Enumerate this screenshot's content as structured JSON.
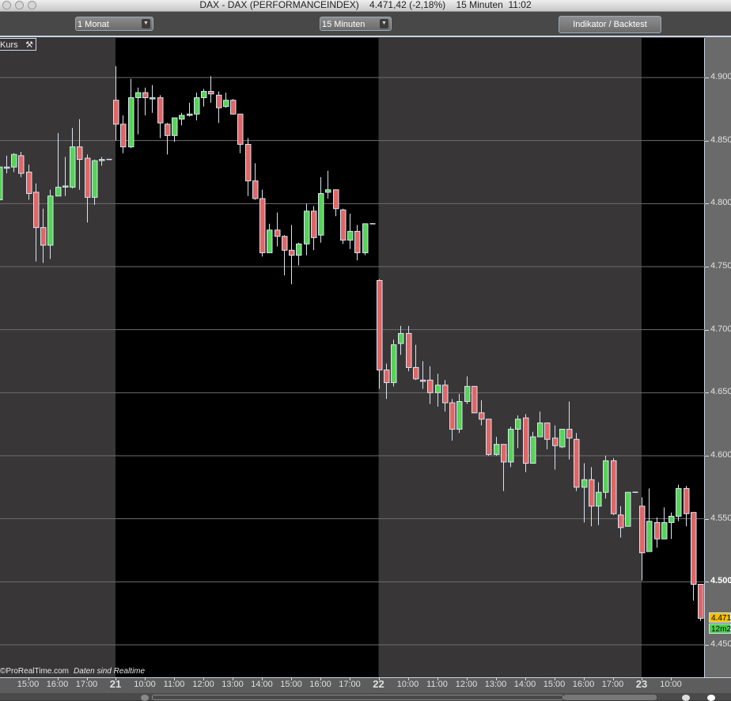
{
  "window": {
    "title": "DAX - DAX (PERFORMANCEINDEX)    4.471,42 (-2,18%)    15 Minuten  11:02"
  },
  "toolbar": {
    "period_select": "1 Monat",
    "interval_select": "15 Minuten",
    "indicator_button": "Indikator / Backtest"
  },
  "panel": {
    "label": "Kurs",
    "copyright": "©ProRealTime.com",
    "realtime_note": "Daten sind Realtime"
  },
  "last_price_tag": "4.471",
  "countdown_tag": "12m2",
  "colors": {
    "up": "#55d455",
    "down": "#e06666",
    "candle_outline": "#d8e4f0",
    "session_bg": "#383637",
    "alt_session_bg": "#000000",
    "last_price_tag": "#f5c000",
    "countdown_tag": "#4fd04f"
  },
  "chart_data": {
    "type": "candlestick",
    "instrument": "DAX",
    "interval": "15 Minuten",
    "ylim": [
      4440,
      4930
    ],
    "grid": true,
    "y_ticks": [
      "4.900",
      "4.850",
      "4.800",
      "4.750",
      "4.700",
      "4.650",
      "4.600",
      "4.550",
      "4.500",
      "4.450"
    ],
    "y_tick_values": [
      4900,
      4850,
      4800,
      4750,
      4700,
      4650,
      4600,
      4550,
      4500,
      4450
    ],
    "x_ticks": [
      {
        "label": "15:00",
        "day": "20",
        "time": "15:00"
      },
      {
        "label": "16:00",
        "day": "20",
        "time": "16:00"
      },
      {
        "label": "17:00",
        "day": "20",
        "time": "17:00"
      },
      {
        "label": "21",
        "day": "21",
        "time": "09:00",
        "is_day": true
      },
      {
        "label": "10:00",
        "day": "21",
        "time": "10:00"
      },
      {
        "label": "11:00",
        "day": "21",
        "time": "11:00"
      },
      {
        "label": "12:00",
        "day": "21",
        "time": "12:00"
      },
      {
        "label": "13:00",
        "day": "21",
        "time": "13:00"
      },
      {
        "label": "14:00",
        "day": "21",
        "time": "14:00"
      },
      {
        "label": "15:00",
        "day": "21",
        "time": "15:00"
      },
      {
        "label": "16:00",
        "day": "21",
        "time": "16:00"
      },
      {
        "label": "17:00",
        "day": "21",
        "time": "17:00"
      },
      {
        "label": "22",
        "day": "22",
        "time": "09:00",
        "is_day": true
      },
      {
        "label": "10:00",
        "day": "22",
        "time": "10:00"
      },
      {
        "label": "11:00",
        "day": "22",
        "time": "11:00"
      },
      {
        "label": "12:00",
        "day": "22",
        "time": "12:00"
      },
      {
        "label": "13:00",
        "day": "22",
        "time": "13:00"
      },
      {
        "label": "14:00",
        "day": "22",
        "time": "14:00"
      },
      {
        "label": "15:00",
        "day": "22",
        "time": "15:00"
      },
      {
        "label": "16:00",
        "day": "22",
        "time": "16:00"
      },
      {
        "label": "17:00",
        "day": "22",
        "time": "17:00"
      },
      {
        "label": "23",
        "day": "23",
        "time": "09:00",
        "is_day": true
      },
      {
        "label": "10:00",
        "day": "23",
        "time": "10:00"
      }
    ],
    "candle_fields": [
      "time",
      "open",
      "high",
      "low",
      "close"
    ],
    "days": [
      {
        "day": "20",
        "candles": [
          [
            "14:00",
            4803,
            4829,
            4800,
            4829
          ],
          [
            "14:15",
            4829,
            4838,
            4824,
            4829
          ],
          [
            "14:30",
            4829,
            4840,
            4825,
            4839
          ],
          [
            "14:45",
            4838,
            4841,
            4821,
            4824
          ],
          [
            "15:00",
            4825,
            4831,
            4803,
            4808
          ],
          [
            "15:15",
            4809,
            4816,
            4754,
            4781
          ],
          [
            "15:30",
            4781,
            4796,
            4753,
            4767
          ],
          [
            "15:45",
            4767,
            4811,
            4756,
            4806
          ],
          [
            "16:00",
            4806,
            4856,
            4806,
            4813
          ],
          [
            "16:15",
            4814,
            4837,
            4806,
            4814
          ],
          [
            "16:30",
            4813,
            4860,
            4812,
            4845
          ],
          [
            "16:45",
            4845,
            4867,
            4811,
            4835
          ],
          [
            "17:00",
            4836,
            4839,
            4785,
            4805
          ],
          [
            "17:15",
            4805,
            4835,
            4799,
            4834
          ],
          [
            "17:30",
            4835,
            4837,
            4830,
            4835
          ],
          [
            "17:45",
            4835,
            4835,
            4835,
            4835
          ]
        ]
      },
      {
        "day": "21",
        "candles": [
          [
            "09:00",
            4882,
            4909,
            4850,
            4863
          ],
          [
            "09:15",
            4863,
            4870,
            4840,
            4845
          ],
          [
            "09:30",
            4845,
            4899,
            4844,
            4884
          ],
          [
            "09:45",
            4884,
            4892,
            4855,
            4888
          ],
          [
            "10:00",
            4888,
            4892,
            4870,
            4884
          ],
          [
            "10:15",
            4883,
            4894,
            4872,
            4884
          ],
          [
            "10:30",
            4884,
            4886,
            4852,
            4864
          ],
          [
            "10:45",
            4863,
            4864,
            4839,
            4854
          ],
          [
            "11:00",
            4854,
            4868,
            4849,
            4868
          ],
          [
            "11:15",
            4867,
            4872,
            4862,
            4870
          ],
          [
            "11:30",
            4870,
            4880,
            4869,
            4871
          ],
          [
            "11:45",
            4871,
            4888,
            4866,
            4884
          ],
          [
            "12:00",
            4884,
            4891,
            4877,
            4889
          ],
          [
            "12:15",
            4889,
            4901,
            4880,
            4887
          ],
          [
            "12:30",
            4886,
            4889,
            4864,
            4876
          ],
          [
            "12:45",
            4877,
            4888,
            4876,
            4882
          ],
          [
            "13:00",
            4882,
            4883,
            4871,
            4871
          ],
          [
            "13:15",
            4871,
            4871,
            4840,
            4847
          ],
          [
            "13:30",
            4847,
            4852,
            4806,
            4818
          ],
          [
            "13:45",
            4818,
            4832,
            4803,
            4804
          ],
          [
            "14:00",
            4804,
            4811,
            4758,
            4761
          ],
          [
            "14:15",
            4761,
            4784,
            4761,
            4779
          ],
          [
            "14:30",
            4779,
            4793,
            4766,
            4774
          ],
          [
            "14:45",
            4774,
            4775,
            4743,
            4763
          ],
          [
            "15:00",
            4763,
            4783,
            4736,
            4759
          ],
          [
            "15:15",
            4759,
            4769,
            4751,
            4768
          ],
          [
            "15:30",
            4768,
            4800,
            4759,
            4794
          ],
          [
            "15:45",
            4794,
            4798,
            4763,
            4773
          ],
          [
            "16:00",
            4775,
            4821,
            4769,
            4808
          ],
          [
            "16:15",
            4809,
            4826,
            4804,
            4811
          ],
          [
            "16:30",
            4811,
            4811,
            4790,
            4796
          ],
          [
            "16:45",
            4795,
            4796,
            4768,
            4771
          ],
          [
            "17:00",
            4771,
            4792,
            4764,
            4778
          ],
          [
            "17:15",
            4778,
            4783,
            4755,
            4761
          ],
          [
            "17:30",
            4761,
            4784,
            4759,
            4784
          ],
          [
            "17:45",
            4784,
            4784,
            4784,
            4784
          ]
        ]
      },
      {
        "day": "22",
        "candles": [
          [
            "09:00",
            4739,
            4740,
            4653,
            4668
          ],
          [
            "09:15",
            4668,
            4673,
            4645,
            4658
          ],
          [
            "09:30",
            4658,
            4692,
            4655,
            4688
          ],
          [
            "09:45",
            4689,
            4703,
            4680,
            4697
          ],
          [
            "10:00",
            4697,
            4703,
            4667,
            4670
          ],
          [
            "10:15",
            4670,
            4688,
            4660,
            4661
          ],
          [
            "10:30",
            4660,
            4675,
            4653,
            4659
          ],
          [
            "10:45",
            4660,
            4671,
            4641,
            4650
          ],
          [
            "11:00",
            4650,
            4665,
            4639,
            4656
          ],
          [
            "11:15",
            4656,
            4660,
            4635,
            4642
          ],
          [
            "11:30",
            4642,
            4645,
            4612,
            4621
          ],
          [
            "11:45",
            4621,
            4649,
            4618,
            4643
          ],
          [
            "12:00",
            4643,
            4663,
            4641,
            4655
          ],
          [
            "12:15",
            4655,
            4655,
            4634,
            4634
          ],
          [
            "12:30",
            4634,
            4644,
            4624,
            4629
          ],
          [
            "12:45",
            4629,
            4629,
            4600,
            4601
          ],
          [
            "13:00",
            4601,
            4615,
            4600,
            4609
          ],
          [
            "13:15",
            4609,
            4609,
            4572,
            4595
          ],
          [
            "13:30",
            4595,
            4623,
            4591,
            4621
          ],
          [
            "13:45",
            4621,
            4632,
            4606,
            4629
          ],
          [
            "14:00",
            4630,
            4633,
            4587,
            4594
          ],
          [
            "14:15",
            4594,
            4619,
            4594,
            4615
          ],
          [
            "14:30",
            4615,
            4635,
            4615,
            4626
          ],
          [
            "14:45",
            4626,
            4626,
            4605,
            4613
          ],
          [
            "15:00",
            4614,
            4624,
            4589,
            4608
          ],
          [
            "15:15",
            4607,
            4621,
            4606,
            4621
          ],
          [
            "15:30",
            4621,
            4643,
            4597,
            4614
          ],
          [
            "15:45",
            4613,
            4618,
            4572,
            4575
          ],
          [
            "16:00",
            4575,
            4594,
            4547,
            4581
          ],
          [
            "16:15",
            4581,
            4591,
            4544,
            4560
          ],
          [
            "16:30",
            4560,
            4579,
            4545,
            4571
          ],
          [
            "16:45",
            4571,
            4600,
            4566,
            4596
          ],
          [
            "17:00",
            4596,
            4598,
            4553,
            4554
          ],
          [
            "17:15",
            4553,
            4560,
            4535,
            4543
          ],
          [
            "17:30",
            4544,
            4571,
            4544,
            4571
          ],
          [
            "17:45",
            4571,
            4571,
            4571,
            4571
          ]
        ]
      },
      {
        "day": "23",
        "candles": [
          [
            "09:00",
            4560,
            4567,
            4501,
            4523
          ],
          [
            "09:15",
            4524,
            4574,
            4524,
            4548
          ],
          [
            "09:30",
            4547,
            4551,
            4527,
            4534
          ],
          [
            "09:45",
            4534,
            4559,
            4534,
            4547
          ],
          [
            "10:00",
            4547,
            4555,
            4534,
            4552
          ],
          [
            "10:15",
            4552,
            4577,
            4548,
            4574
          ],
          [
            "10:30",
            4574,
            4576,
            4544,
            4554
          ],
          [
            "10:45",
            4555,
            4555,
            4485,
            4498
          ],
          [
            "11:00",
            4498,
            4498,
            4469,
            4471
          ]
        ]
      }
    ]
  }
}
